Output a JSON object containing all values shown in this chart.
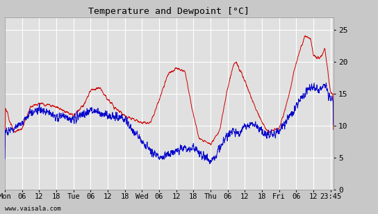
{
  "title": "Temperature and Dewpoint [°C]",
  "ylim": [
    0,
    27
  ],
  "yticks": [
    0,
    5,
    10,
    15,
    20,
    25
  ],
  "background_color": "#c8c8c8",
  "plot_bg_color": "#e0e0e0",
  "grid_color": "#ffffff",
  "temp_color": "#cc0000",
  "dew_color": "#0000cc",
  "watermark": "www.vaisala.com",
  "x_tick_labels": [
    "Mon",
    "06",
    "12",
    "18",
    "Tue",
    "06",
    "12",
    "18",
    "Wed",
    "06",
    "12",
    "18",
    "Thu",
    "06",
    "12",
    "18",
    "Fri",
    "06",
    "12",
    "23:45"
  ],
  "x_tick_positions": [
    0,
    6,
    12,
    18,
    24,
    30,
    36,
    42,
    48,
    54,
    60,
    66,
    72,
    78,
    84,
    90,
    96,
    102,
    108,
    114
  ],
  "total_hours": 115
}
